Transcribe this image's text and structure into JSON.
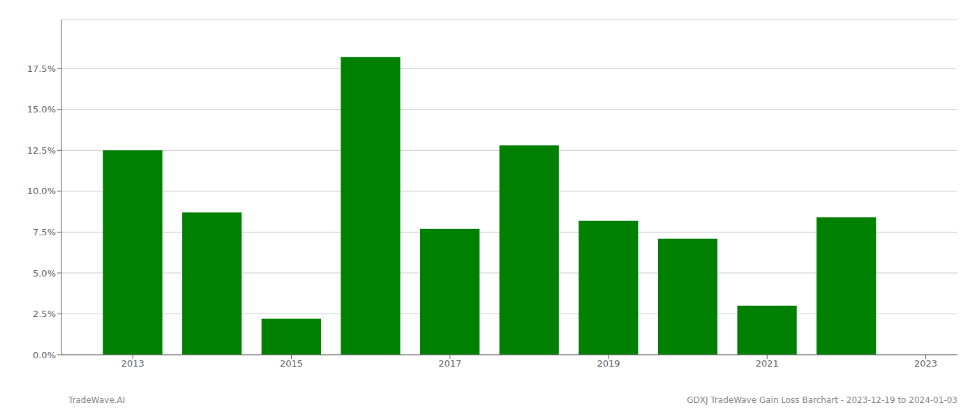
{
  "chart_data": {
    "type": "bar",
    "x": [
      2013,
      2014,
      2015,
      2016,
      2017,
      2018,
      2019,
      2020,
      2021,
      2022
    ],
    "values": [
      0.125,
      0.087,
      0.022,
      0.182,
      0.077,
      0.128,
      0.082,
      0.071,
      0.03,
      0.084
    ],
    "color": "#008000",
    "xlim": [
      2012.1,
      2023.4
    ],
    "xticks": [
      2013,
      2015,
      2017,
      2019,
      2021,
      2023
    ],
    "ylim": [
      0,
      0.205
    ],
    "yticks": [
      {
        "value": 0,
        "label": "0.0%"
      },
      {
        "value": 0.025,
        "label": "2.5%"
      },
      {
        "value": 0.05,
        "label": "5.0%"
      },
      {
        "value": 0.075,
        "label": "7.5%"
      },
      {
        "value": 0.1,
        "label": "10.0%"
      },
      {
        "value": 0.125,
        "label": "12.5%"
      },
      {
        "value": 0.15,
        "label": "15.0%"
      },
      {
        "value": 0.175,
        "label": "17.5%"
      }
    ],
    "grid": true,
    "annotations": [
      "TradeWave.AI",
      "GDXJ TradeWave Gain Loss Barchart - 2023-12-19 to 2024-01-03"
    ]
  }
}
